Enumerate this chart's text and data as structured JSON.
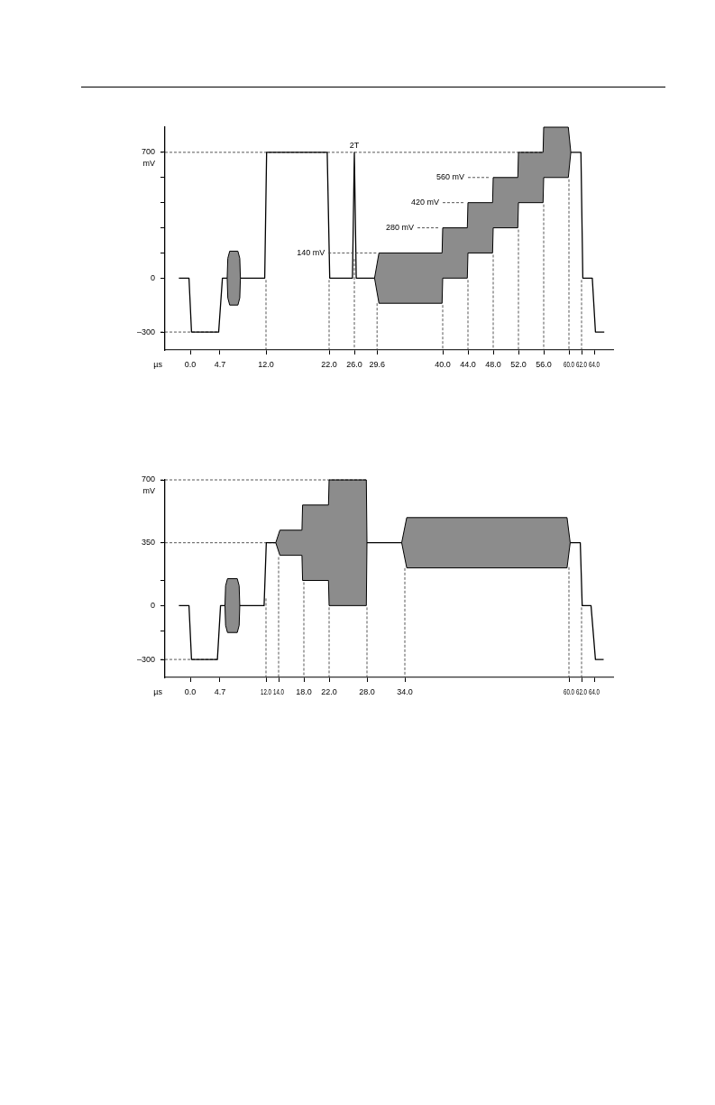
{
  "chart_data": [
    {
      "type": "line",
      "xlabel": "µs",
      "ylabel": "mV",
      "xlim": [
        -4,
        67
      ],
      "ylim": [
        -400,
        840
      ],
      "xticks": [
        {
          "value": 0,
          "label": "0.0"
        },
        {
          "value": 4.7,
          "label": "4.7"
        },
        {
          "value": 12,
          "label": "12.0"
        },
        {
          "value": 22,
          "label": "22.0"
        },
        {
          "value": 26,
          "label": "26.0"
        },
        {
          "value": 29.6,
          "label": "29.6"
        },
        {
          "value": 40,
          "label": "40.0"
        },
        {
          "value": 44,
          "label": "44.0"
        },
        {
          "value": 48,
          "label": "48.0"
        },
        {
          "value": 52,
          "label": "52.0"
        },
        {
          "value": 56,
          "label": "56.0"
        },
        {
          "value": 60,
          "label": "60.0"
        },
        {
          "value": 62,
          "label": "62.0"
        },
        {
          "value": 64,
          "label": "64.0"
        }
      ],
      "yticks": [
        {
          "value": -300,
          "label": "–300"
        },
        0,
        {
          "value": 140,
          "label": null
        },
        {
          "value": 280,
          "label": null
        },
        {
          "value": 420,
          "label": null
        },
        {
          "value": 560,
          "label": null
        },
        700
      ],
      "series": [
        {
          "color": "#000000",
          "x": [
            -1.8,
            -0.2,
            0.2,
            4.5,
            5.1,
            5.85,
            5.95,
            6.25,
            7.55,
            7.85,
            7.95,
            11.8,
            12.1,
            21.7,
            22.1,
            25.7,
            26,
            26.3,
            29.2,
            29.9,
            39.9,
            40,
            43.9,
            44,
            47.9,
            48,
            51.9,
            52,
            55.9,
            56,
            59.9,
            60.3,
            61.9,
            62.2,
            63.7,
            64.2,
            65.6
          ],
          "values": [
            0,
            0,
            -300,
            -300,
            0,
            0,
            null,
            null,
            null,
            null,
            0,
            0,
            700,
            700,
            0,
            0,
            700,
            0,
            0,
            null,
            null,
            null,
            null,
            null,
            null,
            null,
            null,
            null,
            null,
            null,
            null,
            700,
            700,
            0,
            0,
            -300,
            -300
          ],
          "lower": [
            null,
            null,
            null,
            null,
            null,
            0,
            -110,
            -150,
            -150,
            -110,
            0,
            null,
            null,
            null,
            null,
            null,
            null,
            null,
            0,
            -140,
            -140,
            0,
            0,
            140,
            140,
            280,
            280,
            420,
            420,
            560,
            560,
            700,
            null,
            null,
            null,
            null,
            null
          ],
          "upper": [
            null,
            null,
            null,
            null,
            null,
            0,
            110,
            150,
            150,
            110,
            0,
            null,
            null,
            null,
            null,
            null,
            null,
            null,
            0,
            140,
            140,
            280,
            280,
            420,
            420,
            560,
            560,
            700,
            700,
            840,
            840,
            700,
            null,
            null,
            null,
            null,
            null
          ]
        }
      ],
      "ref_lines": [
        {
          "axis": "y",
          "value": 700,
          "line_style": "dashed"
        },
        {
          "axis": "y",
          "value": -300,
          "line_style": "dashed"
        },
        {
          "axis": "x",
          "value": 12,
          "line_style": "dashed"
        },
        {
          "axis": "x",
          "value": 22,
          "line_style": "dashed"
        },
        {
          "axis": "x",
          "value": 26,
          "line_style": "dashed"
        },
        {
          "axis": "x",
          "value": 29.6,
          "line_style": "dashed"
        },
        {
          "axis": "x",
          "value": 40,
          "line_style": "dashed"
        },
        {
          "axis": "x",
          "value": 44,
          "line_style": "dashed"
        },
        {
          "axis": "x",
          "value": 48,
          "line_style": "dashed"
        },
        {
          "axis": "x",
          "value": 52,
          "line_style": "dashed"
        },
        {
          "axis": "x",
          "value": 56,
          "line_style": "dashed"
        },
        {
          "axis": "x",
          "value": 60,
          "line_style": "dashed"
        },
        {
          "axis": "x",
          "value": 62,
          "line_style": "dashed"
        }
      ],
      "annotations": [
        {
          "text": "2T",
          "x": 26,
          "y": 700
        },
        {
          "text": "140 mV",
          "x": 29.9,
          "y": 140
        },
        {
          "text": "280 mV",
          "x": 40,
          "y": 280
        },
        {
          "text": "420 mV",
          "x": 44,
          "y": 420
        },
        {
          "text": "560 mV",
          "x": 48,
          "y": 560
        }
      ]
    },
    {
      "type": "line",
      "xlabel": "µs",
      "ylabel": "mV",
      "xlim": [
        -4,
        67
      ],
      "ylim": [
        -400,
        700
      ],
      "xticks": [
        {
          "value": 0,
          "label": "0.0"
        },
        {
          "value": 4.7,
          "label": "4.7"
        },
        {
          "value": 12,
          "label": "12.0"
        },
        {
          "value": 14,
          "label": "14.0"
        },
        {
          "value": 18,
          "label": "18.0"
        },
        {
          "value": 22,
          "label": "22.0"
        },
        {
          "value": 28,
          "label": "28.0"
        },
        {
          "value": 34,
          "label": "34.0"
        },
        {
          "value": 60,
          "label": "60.0"
        },
        {
          "value": 62,
          "label": "62.0"
        },
        {
          "value": 64,
          "label": "64.0"
        }
      ],
      "yticks": [
        {
          "value": -300,
          "label": "–300"
        },
        {
          "value": -140,
          "label": null
        },
        0,
        {
          "value": 140,
          "label": null
        },
        350,
        700
      ],
      "series": [
        {
          "color": "#000000",
          "x": [
            -1.8,
            -0.2,
            0.2,
            4.3,
            4.8,
            5.5,
            5.6,
            5.9,
            7.45,
            7.75,
            7.85,
            11.7,
            12.05,
            13.55,
            14.2,
            17.7,
            17.8,
            21.9,
            22,
            27.9,
            28,
            30.75,
            33.5,
            34.3,
            59.7,
            60.2,
            61.8,
            62.1,
            63.5,
            64.2,
            65.5
          ],
          "values": [
            0,
            0,
            -300,
            -300,
            0,
            0,
            null,
            null,
            null,
            null,
            0,
            0,
            350,
            350,
            null,
            null,
            null,
            null,
            null,
            null,
            350,
            350,
            350,
            null,
            null,
            350,
            350,
            0,
            0,
            -300,
            -300
          ],
          "lower": [
            null,
            null,
            null,
            null,
            null,
            0,
            -110,
            -150,
            -150,
            -110,
            0,
            null,
            null,
            350,
            280,
            280,
            140,
            140,
            0,
            0,
            350,
            null,
            350,
            210,
            210,
            350,
            null,
            null,
            null,
            null,
            null
          ],
          "upper": [
            null,
            null,
            null,
            null,
            null,
            0,
            110,
            150,
            150,
            110,
            0,
            null,
            null,
            350,
            420,
            420,
            560,
            560,
            700,
            700,
            350,
            null,
            350,
            490,
            490,
            350,
            null,
            null,
            null,
            null,
            null
          ]
        }
      ],
      "ref_lines": [
        {
          "axis": "y",
          "value": 700,
          "line_style": "dashed"
        },
        {
          "axis": "y",
          "value": 350,
          "line_style": "dashed"
        },
        {
          "axis": "y",
          "value": -300,
          "line_style": "dashed"
        },
        {
          "axis": "x",
          "value": 12,
          "line_style": "dashed"
        },
        {
          "axis": "x",
          "value": 14,
          "line_style": "dashed"
        },
        {
          "axis": "x",
          "value": 18,
          "line_style": "dashed"
        },
        {
          "axis": "x",
          "value": 22,
          "line_style": "dashed"
        },
        {
          "axis": "x",
          "value": 28,
          "line_style": "dashed"
        },
        {
          "axis": "x",
          "value": 34,
          "line_style": "dashed"
        },
        {
          "axis": "x",
          "value": 60,
          "line_style": "dashed"
        },
        {
          "axis": "x",
          "value": 62,
          "line_style": "dashed"
        }
      ]
    }
  ]
}
